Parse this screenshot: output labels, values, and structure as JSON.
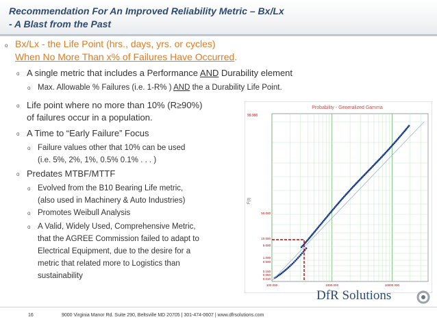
{
  "title": {
    "line1": "Recommendation For An Improved Reliability Metric – Bx/Lx",
    "line2": "- A Blast from the Past"
  },
  "bullets": {
    "main1_a": "Bx/Lx - the Life Point (hrs., days, yrs. or cycles)",
    "main1_b": "When No More Than x% of Failures Have Occurred",
    "main1_dot": ".",
    "sub1_pre": "A single metric that includes a Performance ",
    "sub1_and": "AND",
    "sub1_post": " Durability element",
    "subsub1_pre": "Max. Allowable % Failures (i.e. 1-R% )  ",
    "subsub1_and": "AND",
    "subsub1_post": " the a Durability Life Point.",
    "sub2_line1": "Life point where no more than 10% (R≥90%)",
    "sub2_line2": "of failures occur in a population.",
    "sub3": "A Time to “Early Failure” Focus",
    "subsub3_line1": "Failure values other that 10% can be used",
    "subsub3_line2": "(i.e.  5%, 2%, 1%, 0.5%  0.1% . . . )",
    "sub4": "Predates MTBF/MTTF",
    "subsub4a_line1": "Evolved from the B10 Bearing Life metric,",
    "subsub4a_line2": "(also used in Machinery & Auto Industries)",
    "subsub4b": "Promotes Weibull Analysis",
    "subsub4c_line1": "A Valid, Widely Used, Comprehensive Metric,",
    "subsub4c_line2": "that the AGREE Commission failed to adapt to",
    "subsub4c_line3": "Electrical Equipment, due to the desire for a",
    "subsub4c_line4": "metric that related more to Logistics than",
    "subsub4c_line5": "sustainability",
    "marker": "o"
  },
  "chart": {
    "title": "Probability - Generalized Gamma",
    "ylabel": "F(t)",
    "y_top_label": "99.990",
    "y_labels": [
      "50.000",
      "10.000",
      "5.000",
      "1.000",
      "0.500",
      "0.100",
      "0.050",
      "0.010"
    ],
    "x_labels": [
      "100.000",
      "1000.000",
      "10000.000"
    ]
  },
  "footer": {
    "page": "16",
    "address": "9000 Virginia Manor Rd. Suite 290, Beltsville MD 20705 | 301-474-0607 | www.dfrsolutions.com"
  },
  "logo": {
    "text": "DfR Solutions"
  },
  "colors": {
    "title": "#2f4a6f",
    "accent": "#e07b20",
    "points": "#1f3f8a",
    "marker": "#c00000"
  }
}
